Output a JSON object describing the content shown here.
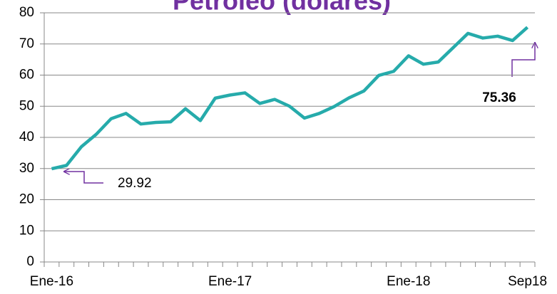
{
  "chart_data": {
    "type": "line",
    "title": "Petróleo (dólares)",
    "categories": [
      "Ene-16",
      null,
      null,
      null,
      null,
      null,
      null,
      null,
      null,
      null,
      null,
      null,
      "Ene-17",
      null,
      null,
      null,
      null,
      null,
      null,
      null,
      null,
      null,
      null,
      null,
      "Ene-18",
      null,
      null,
      null,
      null,
      null,
      null,
      null,
      "Sep18"
    ],
    "values": [
      29.92,
      31,
      37,
      41,
      46,
      47.7,
      44.3,
      44.8,
      45,
      49.2,
      45.4,
      52.6,
      53.6,
      54.3,
      50.9,
      52.2,
      50,
      46.2,
      47.7,
      49.9,
      52.7,
      54.9,
      59.9,
      61.2,
      66.2,
      63.5,
      64.2,
      68.8,
      73.4,
      71.9,
      72.5,
      71.1,
      75.36
    ],
    "color": "#26abab",
    "ylim": [
      0,
      80
    ],
    "yticks": [
      0,
      10,
      20,
      30,
      40,
      50,
      60,
      70,
      80
    ],
    "grid": true
  }
}
